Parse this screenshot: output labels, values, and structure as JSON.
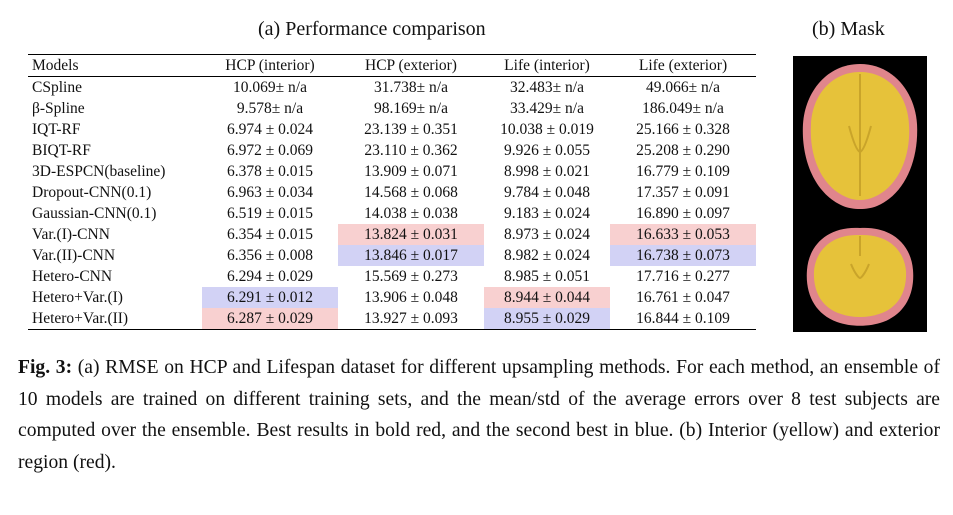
{
  "titles": {
    "a": "(a) Performance comparison",
    "b": "(b) Mask"
  },
  "table": {
    "headers": [
      "Models",
      "HCP (interior)",
      "HCP (exterior)",
      "Life (interior)",
      "Life (exterior)"
    ],
    "rows": [
      {
        "model": "CSpline",
        "cells": [
          "10.069± n/a",
          "31.738± n/a",
          "32.483± n/a",
          "49.066± n/a"
        ]
      },
      {
        "model": "β-Spline",
        "cells": [
          "9.578± n/a",
          "98.169± n/a",
          "33.429± n/a",
          "186.049± n/a"
        ]
      },
      {
        "model": "IQT-RF",
        "cells": [
          "6.974 ± 0.024",
          "23.139 ± 0.351",
          "10.038 ± 0.019",
          "25.166 ± 0.328"
        ]
      },
      {
        "model": "BIQT-RF",
        "cells": [
          "6.972 ± 0.069",
          "23.110 ± 0.362",
          "9.926 ± 0.055",
          "25.208 ± 0.290"
        ]
      },
      {
        "model": "3D-ESPCN(baseline)",
        "cells": [
          "6.378 ± 0.015",
          "13.909 ± 0.071",
          "8.998 ± 0.021",
          "16.779 ± 0.109"
        ]
      },
      {
        "model": "Dropout-CNN(0.1)",
        "cells": [
          "6.963 ± 0.034",
          "14.568 ± 0.068",
          "9.784 ± 0.048",
          "17.357 ± 0.091"
        ]
      },
      {
        "model": "Gaussian-CNN(0.1)",
        "cells": [
          "6.519 ± 0.015",
          "14.038 ± 0.038",
          "9.183 ± 0.024",
          "16.890 ± 0.097"
        ]
      },
      {
        "model": "Var.(I)-CNN",
        "cells": [
          "6.354 ± 0.015",
          "13.824 ± 0.031",
          "8.973 ± 0.024",
          "16.633 ± 0.053"
        ]
      },
      {
        "model": "Var.(II)-CNN",
        "cells": [
          "6.356 ± 0.008",
          "13.846 ± 0.017",
          "8.982 ± 0.024",
          "16.738 ± 0.073"
        ]
      },
      {
        "model": "Hetero-CNN",
        "cells": [
          "6.294 ± 0.029",
          "15.569 ± 0.273",
          "8.985 ± 0.051",
          "17.716 ± 0.277"
        ]
      },
      {
        "model": "Hetero+Var.(I)",
        "cells": [
          "6.291 ± 0.012",
          "13.906 ± 0.048",
          "8.944 ± 0.044",
          "16.761 ± 0.047"
        ]
      },
      {
        "model": "Hetero+Var.(II)",
        "cells": [
          "6.287 ± 0.029",
          "13.927 ± 0.093",
          "8.955 ± 0.029",
          "16.844 ± 0.109"
        ]
      }
    ],
    "highlight_colors": {
      "best": "#f8d0d0",
      "second": "#d2d2f5"
    }
  },
  "mask": {
    "interior_color": "#e6c23a",
    "exterior_color": "#e0858c",
    "background": "#000000"
  },
  "caption": {
    "label": "Fig. 3:",
    "text": " (a) RMSE on HCP and Lifespan dataset for different upsampling methods. For each method, an ensemble of 10 models are trained on different training sets, and the mean/std of the average errors over 8 test subjects are computed over the ensemble. Best results in bold red, and the second best in blue. (b) Interior (yellow) and exterior region (red)."
  }
}
